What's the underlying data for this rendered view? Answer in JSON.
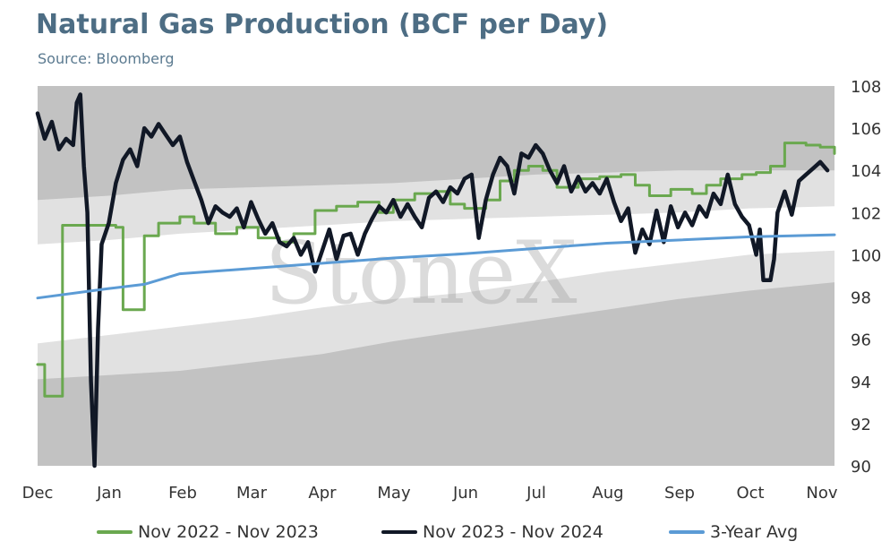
{
  "title": "Natural Gas Production (BCF per Day)",
  "subtitle": "Source: Bloomberg",
  "watermark": "StoneX",
  "chart_data": {
    "type": "line",
    "title": "Natural Gas Production (BCF per Day)",
    "source": "Source: Bloomberg",
    "xlabel": "",
    "ylabel": "",
    "ylim": [
      90,
      108
    ],
    "y_ticks": [
      90,
      92,
      94,
      96,
      98,
      100,
      102,
      104,
      106,
      108
    ],
    "y_axis_side": "right",
    "x_ticks": [
      "Dec",
      "Jan",
      "Feb",
      "Mar",
      "Apr",
      "May",
      "Jun",
      "Jul",
      "Aug",
      "Sep",
      "Oct",
      "Nov"
    ],
    "x_range_months": [
      0,
      11.2
    ],
    "legend_position": "bottom",
    "bands": {
      "months": [
        0,
        1,
        2,
        3,
        4,
        5,
        6,
        7,
        8,
        9,
        10,
        11.2
      ],
      "min": [
        94.1,
        94.3,
        94.5,
        94.9,
        95.3,
        95.9,
        96.4,
        96.9,
        97.4,
        97.9,
        98.3,
        98.7
      ],
      "low": [
        95.8,
        96.2,
        96.6,
        97.0,
        97.5,
        97.9,
        98.2,
        98.7,
        99.2,
        99.6,
        100.0,
        100.2
      ],
      "high": [
        100.5,
        100.7,
        101.0,
        101.2,
        101.4,
        101.6,
        101.7,
        101.8,
        101.9,
        102.0,
        102.2,
        102.3
      ],
      "max": [
        102.6,
        102.8,
        103.1,
        103.2,
        103.3,
        103.4,
        103.6,
        103.8,
        103.9,
        104.0,
        104.0,
        104.0
      ],
      "colors": {
        "outer": "#c2c2c2",
        "inner": "#e1e1e1",
        "center": "#ffffff"
      }
    },
    "series": [
      {
        "name": "Nov 2022 - Nov 2023",
        "color": "#6aa84f",
        "step": true,
        "points": [
          [
            0,
            94.8
          ],
          [
            0.1,
            93.3
          ],
          [
            0.35,
            101.4
          ],
          [
            0.8,
            101.4
          ],
          [
            1.1,
            101.3
          ],
          [
            1.2,
            97.4
          ],
          [
            1.5,
            100.9
          ],
          [
            1.7,
            101.5
          ],
          [
            2.0,
            101.8
          ],
          [
            2.2,
            101.5
          ],
          [
            2.5,
            101.0
          ],
          [
            2.8,
            101.3
          ],
          [
            3.1,
            100.8
          ],
          [
            3.4,
            100.6
          ],
          [
            3.6,
            101.0
          ],
          [
            3.9,
            102.1
          ],
          [
            4.2,
            102.3
          ],
          [
            4.5,
            102.5
          ],
          [
            4.8,
            102.0
          ],
          [
            5.0,
            102.6
          ],
          [
            5.3,
            102.9
          ],
          [
            5.6,
            103.0
          ],
          [
            5.8,
            102.4
          ],
          [
            6.0,
            102.2
          ],
          [
            6.3,
            102.6
          ],
          [
            6.5,
            103.5
          ],
          [
            6.7,
            104.0
          ],
          [
            6.9,
            104.2
          ],
          [
            7.1,
            104.0
          ],
          [
            7.3,
            103.2
          ],
          [
            7.6,
            103.6
          ],
          [
            7.9,
            103.7
          ],
          [
            8.2,
            103.8
          ],
          [
            8.4,
            103.3
          ],
          [
            8.6,
            102.8
          ],
          [
            8.9,
            103.1
          ],
          [
            9.2,
            102.9
          ],
          [
            9.4,
            103.3
          ],
          [
            9.6,
            103.6
          ],
          [
            9.9,
            103.8
          ],
          [
            10.1,
            103.9
          ],
          [
            10.3,
            104.2
          ],
          [
            10.5,
            105.3
          ],
          [
            10.8,
            105.2
          ],
          [
            11.0,
            105.1
          ],
          [
            11.2,
            104.8
          ]
        ]
      },
      {
        "name": "Nov 2023 - Nov 2024",
        "color": "#111826",
        "step": false,
        "points": [
          [
            0,
            106.7
          ],
          [
            0.1,
            105.5
          ],
          [
            0.2,
            106.3
          ],
          [
            0.3,
            105.0
          ],
          [
            0.4,
            105.5
          ],
          [
            0.5,
            105.2
          ],
          [
            0.55,
            107.2
          ],
          [
            0.6,
            107.6
          ],
          [
            0.65,
            104.2
          ],
          [
            0.7,
            102.0
          ],
          [
            0.75,
            94.0
          ],
          [
            0.8,
            90.0
          ],
          [
            0.85,
            96.5
          ],
          [
            0.9,
            100.5
          ],
          [
            1.0,
            101.5
          ],
          [
            1.1,
            103.4
          ],
          [
            1.2,
            104.5
          ],
          [
            1.3,
            105.0
          ],
          [
            1.4,
            104.2
          ],
          [
            1.5,
            106.0
          ],
          [
            1.6,
            105.6
          ],
          [
            1.7,
            106.2
          ],
          [
            1.8,
            105.7
          ],
          [
            1.9,
            105.2
          ],
          [
            2.0,
            105.6
          ],
          [
            2.1,
            104.4
          ],
          [
            2.2,
            103.5
          ],
          [
            2.3,
            102.6
          ],
          [
            2.4,
            101.5
          ],
          [
            2.5,
            102.3
          ],
          [
            2.6,
            102.0
          ],
          [
            2.7,
            101.8
          ],
          [
            2.8,
            102.2
          ],
          [
            2.9,
            101.3
          ],
          [
            3.0,
            102.5
          ],
          [
            3.1,
            101.7
          ],
          [
            3.2,
            101.0
          ],
          [
            3.3,
            101.5
          ],
          [
            3.4,
            100.6
          ],
          [
            3.5,
            100.4
          ],
          [
            3.6,
            100.8
          ],
          [
            3.7,
            100.0
          ],
          [
            3.8,
            100.6
          ],
          [
            3.9,
            99.2
          ],
          [
            4.0,
            100.2
          ],
          [
            4.1,
            101.2
          ],
          [
            4.2,
            99.8
          ],
          [
            4.3,
            100.9
          ],
          [
            4.4,
            101.0
          ],
          [
            4.5,
            100.0
          ],
          [
            4.6,
            101.0
          ],
          [
            4.7,
            101.7
          ],
          [
            4.8,
            102.3
          ],
          [
            4.9,
            102.0
          ],
          [
            5.0,
            102.6
          ],
          [
            5.1,
            101.8
          ],
          [
            5.2,
            102.4
          ],
          [
            5.3,
            101.8
          ],
          [
            5.4,
            101.3
          ],
          [
            5.5,
            102.7
          ],
          [
            5.6,
            103.0
          ],
          [
            5.7,
            102.5
          ],
          [
            5.8,
            103.2
          ],
          [
            5.9,
            102.9
          ],
          [
            6.0,
            103.6
          ],
          [
            6.1,
            103.8
          ],
          [
            6.2,
            100.8
          ],
          [
            6.3,
            102.6
          ],
          [
            6.4,
            103.8
          ],
          [
            6.5,
            104.6
          ],
          [
            6.6,
            104.2
          ],
          [
            6.7,
            102.9
          ],
          [
            6.8,
            104.8
          ],
          [
            6.9,
            104.6
          ],
          [
            7.0,
            105.2
          ],
          [
            7.1,
            104.8
          ],
          [
            7.2,
            104.0
          ],
          [
            7.3,
            103.4
          ],
          [
            7.4,
            104.2
          ],
          [
            7.5,
            103.0
          ],
          [
            7.6,
            103.7
          ],
          [
            7.7,
            103.0
          ],
          [
            7.8,
            103.4
          ],
          [
            7.9,
            102.9
          ],
          [
            8.0,
            103.6
          ],
          [
            8.1,
            102.5
          ],
          [
            8.2,
            101.6
          ],
          [
            8.3,
            102.2
          ],
          [
            8.4,
            100.1
          ],
          [
            8.5,
            101.2
          ],
          [
            8.6,
            100.5
          ],
          [
            8.7,
            102.1
          ],
          [
            8.8,
            100.6
          ],
          [
            8.9,
            102.3
          ],
          [
            9.0,
            101.3
          ],
          [
            9.1,
            102.0
          ],
          [
            9.2,
            101.4
          ],
          [
            9.3,
            102.3
          ],
          [
            9.4,
            101.8
          ],
          [
            9.5,
            102.9
          ],
          [
            9.6,
            102.4
          ],
          [
            9.7,
            103.8
          ],
          [
            9.8,
            102.4
          ],
          [
            9.9,
            101.8
          ],
          [
            10.0,
            101.4
          ],
          [
            10.1,
            100.0
          ],
          [
            10.15,
            101.2
          ],
          [
            10.2,
            98.8
          ],
          [
            10.3,
            98.8
          ],
          [
            10.35,
            99.8
          ],
          [
            10.4,
            102.0
          ],
          [
            10.5,
            103.0
          ],
          [
            10.6,
            101.9
          ],
          [
            10.7,
            103.5
          ],
          [
            10.8,
            103.8
          ],
          [
            10.9,
            104.1
          ],
          [
            11.0,
            104.4
          ],
          [
            11.1,
            104.0
          ]
        ]
      },
      {
        "name": "3-Year Avg",
        "color": "#5b9bd5",
        "step": false,
        "points": [
          [
            0,
            97.95
          ],
          [
            1,
            98.4
          ],
          [
            1.5,
            98.6
          ],
          [
            2,
            99.1
          ],
          [
            3,
            99.35
          ],
          [
            4,
            99.6
          ],
          [
            5,
            99.85
          ],
          [
            6,
            100.05
          ],
          [
            7,
            100.3
          ],
          [
            8,
            100.55
          ],
          [
            9,
            100.7
          ],
          [
            10,
            100.85
          ],
          [
            11.2,
            100.95
          ]
        ]
      }
    ]
  }
}
